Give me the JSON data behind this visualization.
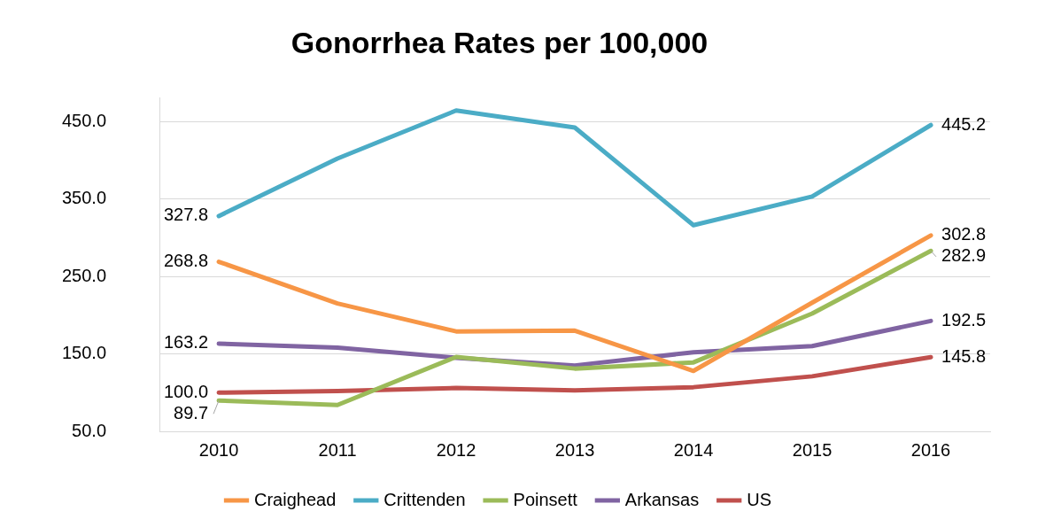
{
  "chart_data": {
    "type": "line",
    "title": "Gonorrhea Rates per 100,000",
    "categories": [
      "2010",
      "2011",
      "2012",
      "2013",
      "2014",
      "2015",
      "2016"
    ],
    "series": [
      {
        "name": "Craighead",
        "color": "#f79646",
        "values": [
          268.8,
          215,
          179,
          180,
          128,
          216,
          302.8
        ],
        "value_labels": [
          "268.8",
          null,
          null,
          null,
          null,
          null,
          "302.8"
        ]
      },
      {
        "name": "Crittenden",
        "color": "#4bacc6",
        "values": [
          327.8,
          402,
          464,
          442,
          316,
          353,
          445.2
        ],
        "value_labels": [
          "327.8",
          null,
          null,
          null,
          null,
          null,
          "445.2"
        ]
      },
      {
        "name": "Poinsett",
        "color": "#9bbb59",
        "values": [
          89.7,
          84,
          146,
          131,
          139,
          202,
          282.9
        ],
        "value_labels": [
          "89.7",
          null,
          null,
          null,
          null,
          null,
          "282.9"
        ]
      },
      {
        "name": "Arkansas",
        "color": "#8064a2",
        "values": [
          163.2,
          158,
          145,
          135,
          152,
          160,
          192.5
        ],
        "value_labels": [
          "163.2",
          null,
          null,
          null,
          null,
          null,
          "192.5"
        ]
      },
      {
        "name": "US",
        "color": "#c0504d",
        "values": [
          100.0,
          102,
          106,
          103,
          107,
          121,
          145.8
        ],
        "value_labels": [
          "100.0",
          null,
          null,
          null,
          null,
          null,
          "145.8"
        ]
      }
    ],
    "ylim": [
      50,
      480
    ],
    "yticks": [
      {
        "value": 50,
        "label": "50.0"
      },
      {
        "value": 150,
        "label": "150.0"
      },
      {
        "value": 250,
        "label": "250.0"
      },
      {
        "value": 350,
        "label": "350.0"
      },
      {
        "value": 450,
        "label": "450.0"
      }
    ],
    "grid": "y",
    "legend": "bottom",
    "marker": "none",
    "line_style": "solid"
  }
}
